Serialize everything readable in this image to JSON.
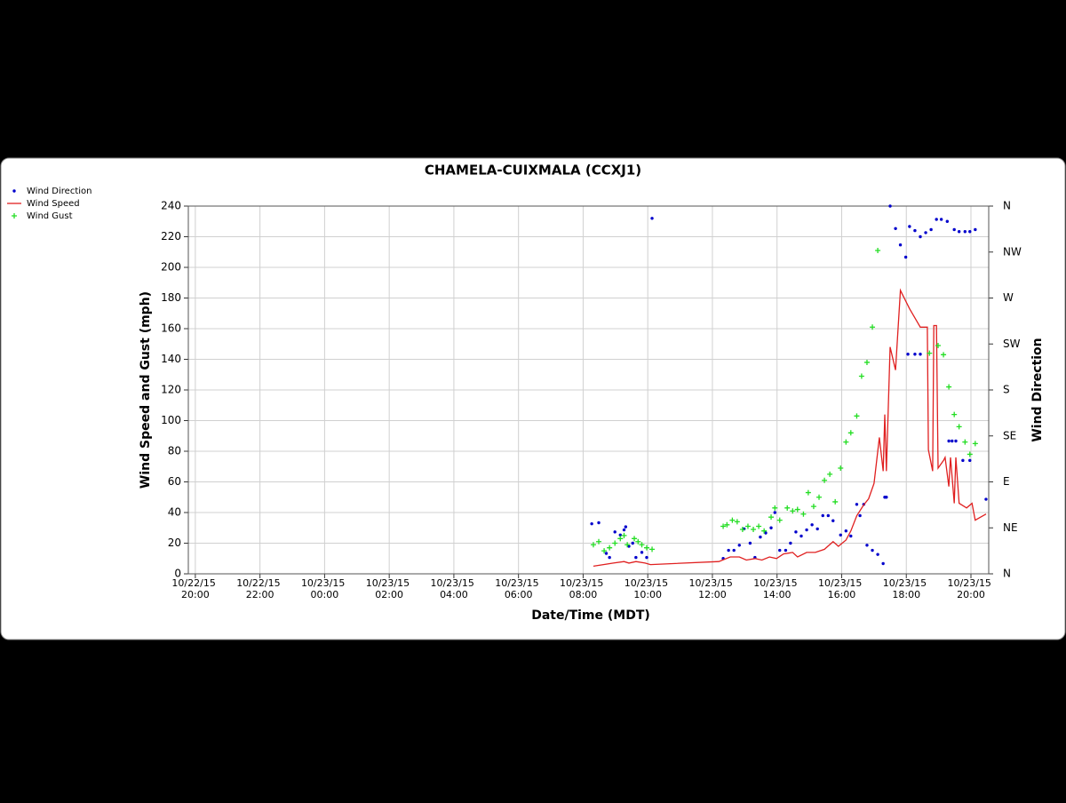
{
  "chart_data": {
    "type": "line",
    "title": "CHAMELA-CUIXMALA (CCXJ1)",
    "x_label": "Date/Time (MDT)",
    "y_label": "Wind Speed and Gust (mph)",
    "y2_label": "Wind Direction",
    "legend_position": "top-left",
    "grid": true,
    "xlim": [
      "10/22/15 19:47",
      "10/23/15 20:33"
    ],
    "xticks": [
      "10/22/15 20:00",
      "10/22/15 22:00",
      "10/23/15 00:00",
      "10/23/15 02:00",
      "10/23/15 04:00",
      "10/23/15 06:00",
      "10/23/15 08:00",
      "10/23/15 10:00",
      "10/23/15 12:00",
      "10/23/15 14:00",
      "10/23/15 16:00",
      "10/23/15 18:00",
      "10/23/15 20:00"
    ],
    "ylim": [
      0,
      240
    ],
    "yticks": [
      0,
      20,
      40,
      60,
      80,
      100,
      120,
      140,
      160,
      180,
      200,
      220,
      240
    ],
    "y2lim": [
      0,
      360
    ],
    "y2ticks": [
      {
        "value": 0,
        "label": "N"
      },
      {
        "value": 45,
        "label": "NE"
      },
      {
        "value": 90,
        "label": "E"
      },
      {
        "value": 135,
        "label": "SE"
      },
      {
        "value": 180,
        "label": "S"
      },
      {
        "value": 225,
        "label": "SW"
      },
      {
        "value": 270,
        "label": "W"
      },
      {
        "value": 315,
        "label": "NW"
      },
      {
        "value": 360,
        "label": "N"
      }
    ],
    "series": [
      {
        "name": "Wind Direction",
        "type": "scatter",
        "marker": "dot",
        "color": "#0000cc",
        "axis": "y2",
        "x": [
          "10/23/15 08:16",
          "10/23/15 08:29",
          "10/23/15 08:43",
          "10/23/15 08:49",
          "10/23/15 08:59",
          "10/23/15 09:09",
          "10/23/15 09:16",
          "10/23/15 09:19",
          "10/23/15 09:25",
          "10/23/15 09:32",
          "10/23/15 09:38",
          "10/23/15 09:49",
          "10/23/15 09:58",
          "10/23/15 10:08",
          "10/23/15 12:20",
          "10/23/15 12:30",
          "10/23/15 12:40",
          "10/23/15 12:50",
          "10/23/15 12:59",
          "10/23/15 13:10",
          "10/23/15 13:19",
          "10/23/15 13:29",
          "10/23/15 13:39",
          "10/23/15 13:49",
          "10/23/15 13:56",
          "10/23/15 14:05",
          "10/23/15 14:16",
          "10/23/15 14:25",
          "10/23/15 14:35",
          "10/23/15 14:45",
          "10/23/15 14:55",
          "10/23/15 15:05",
          "10/23/15 15:15",
          "10/23/15 15:25",
          "10/23/15 15:35",
          "10/23/15 15:44",
          "10/23/15 15:58",
          "10/23/15 16:08",
          "10/23/15 16:17",
          "10/23/15 16:28",
          "10/23/15 16:34",
          "10/23/15 16:41",
          "10/23/15 16:47",
          "10/23/15 16:57",
          "10/23/15 17:07",
          "10/23/15 17:17",
          "10/23/15 17:20",
          "10/23/15 17:23",
          "10/23/15 17:30",
          "10/23/15 17:40",
          "10/23/15 17:49",
          "10/23/15 17:59",
          "10/23/15 18:03",
          "10/23/15 18:06",
          "10/23/15 18:16",
          "10/23/15 18:16",
          "10/23/15 18:26",
          "10/23/15 18:26",
          "10/23/15 18:36",
          "10/23/15 18:46",
          "10/23/15 18:56",
          "10/23/15 19:05",
          "10/23/15 19:16",
          "10/23/15 19:19",
          "10/23/15 19:25",
          "10/23/15 19:29",
          "10/23/15 19:32",
          "10/23/15 19:38",
          "10/23/15 19:45",
          "10/23/15 19:49",
          "10/23/15 19:58",
          "10/23/15 19:58",
          "10/23/15 20:08",
          "10/23/15 20:28"
        ],
        "values": [
          49,
          50,
          20,
          16,
          41,
          38,
          43,
          46,
          27,
          30,
          16,
          21,
          16,
          348,
          15,
          23,
          23,
          28,
          44,
          30,
          16,
          36,
          40,
          45,
          60,
          23,
          23,
          30,
          41,
          37,
          43,
          48,
          44,
          57,
          57,
          52,
          38,
          42,
          37,
          68,
          57,
          68,
          28,
          23,
          19,
          10,
          75,
          75,
          360,
          338,
          322,
          310,
          215,
          340,
          215,
          336,
          215,
          330,
          334,
          337,
          347,
          347,
          345,
          130,
          130,
          337,
          130,
          335,
          111,
          335,
          335,
          111,
          337,
          73
        ]
      },
      {
        "name": "Wind Speed",
        "type": "line",
        "color": "#e02020",
        "axis": "y",
        "x": [
          "10/23/15 08:19",
          "10/23/15 08:56",
          "10/23/15 09:16",
          "10/23/15 09:25",
          "10/23/15 09:38",
          "10/23/15 09:55",
          "10/23/15 10:05",
          "10/23/15 12:12",
          "10/23/15 12:33",
          "10/23/15 12:50",
          "10/23/15 13:03",
          "10/23/15 13:19",
          "10/23/15 13:32",
          "10/23/15 13:46",
          "10/23/15 13:59",
          "10/23/15 14:12",
          "10/23/15 14:29",
          "10/23/15 14:38",
          "10/23/15 14:55",
          "10/23/15 15:11",
          "10/23/15 15:28",
          "10/23/15 15:44",
          "10/23/15 15:54",
          "10/23/15 16:08",
          "10/23/15 16:17",
          "10/23/15 16:28",
          "10/23/15 16:41",
          "10/23/15 16:50",
          "10/23/15 17:00",
          "10/23/15 17:10",
          "10/23/15 17:17",
          "10/23/15 17:20",
          "10/23/15 17:23",
          "10/23/15 17:30",
          "10/23/15 17:40",
          "10/23/15 17:49",
          "10/23/15 18:06",
          "10/23/15 18:26",
          "10/23/15 18:39",
          "10/23/15 18:41",
          "10/23/15 18:49",
          "10/23/15 18:51",
          "10/23/15 18:56",
          "10/23/15 18:59",
          "10/23/15 19:09",
          "10/23/15 19:12",
          "10/23/15 19:19",
          "10/23/15 19:22",
          "10/23/15 19:29",
          "10/23/15 19:32",
          "10/23/15 19:38",
          "10/23/15 19:52",
          "10/23/15 20:02",
          "10/23/15 20:08",
          "10/23/15 20:28"
        ],
        "values": [
          5,
          7,
          8,
          7,
          8,
          7,
          6,
          8,
          11,
          11,
          9,
          10,
          9,
          11,
          10,
          13,
          14,
          11,
          14,
          14,
          16,
          21,
          18,
          22,
          28,
          38,
          45,
          49,
          59,
          89,
          67,
          104,
          67,
          148,
          133,
          185,
          173,
          161,
          161,
          81,
          67,
          162,
          162,
          69,
          74,
          76,
          57,
          76,
          46,
          76,
          46,
          43,
          46,
          35,
          39
        ]
      },
      {
        "name": "Wind Gust",
        "type": "scatter",
        "marker": "plus",
        "color": "#22dd22",
        "axis": "y",
        "x": [
          "10/23/15 08:19",
          "10/23/15 08:29",
          "10/23/15 08:39",
          "10/23/15 08:49",
          "10/23/15 08:59",
          "10/23/15 09:09",
          "10/23/15 09:16",
          "10/23/15 09:22",
          "10/23/15 09:35",
          "10/23/15 09:42",
          "10/23/15 09:49",
          "10/23/15 09:58",
          "10/23/15 10:08",
          "10/23/15 12:20",
          "10/23/15 12:27",
          "10/23/15 12:37",
          "10/23/15 12:46",
          "10/23/15 12:56",
          "10/23/15 13:06",
          "10/23/15 13:16",
          "10/23/15 13:26",
          "10/23/15 13:36",
          "10/23/15 13:49",
          "10/23/15 13:56",
          "10/23/15 14:05",
          "10/23/15 14:19",
          "10/23/15 14:29",
          "10/23/15 14:38",
          "10/23/15 14:49",
          "10/23/15 14:58",
          "10/23/15 15:08",
          "10/23/15 15:18",
          "10/23/15 15:28",
          "10/23/15 15:38",
          "10/23/15 15:48",
          "10/23/15 15:58",
          "10/23/15 16:08",
          "10/23/15 16:17",
          "10/23/15 16:28",
          "10/23/15 16:37",
          "10/23/15 16:47",
          "10/23/15 16:57",
          "10/23/15 17:07",
          "10/23/15 18:43",
          "10/23/15 18:59",
          "10/23/15 19:09",
          "10/23/15 19:19",
          "10/23/15 19:29",
          "10/23/15 19:38",
          "10/23/15 19:49",
          "10/23/15 19:58",
          "10/23/15 20:08"
        ],
        "values": [
          19,
          21,
          15,
          17,
          20,
          23,
          25,
          19,
          23,
          21,
          19,
          17,
          16,
          31,
          32,
          35,
          34,
          29,
          31,
          29,
          31,
          28,
          37,
          43,
          35,
          43,
          41,
          42,
          39,
          53,
          44,
          50,
          61,
          65,
          47,
          69,
          86,
          92,
          103,
          129,
          138,
          161,
          211,
          144,
          149,
          143,
          122,
          104,
          96,
          86,
          78,
          85
        ]
      }
    ]
  }
}
